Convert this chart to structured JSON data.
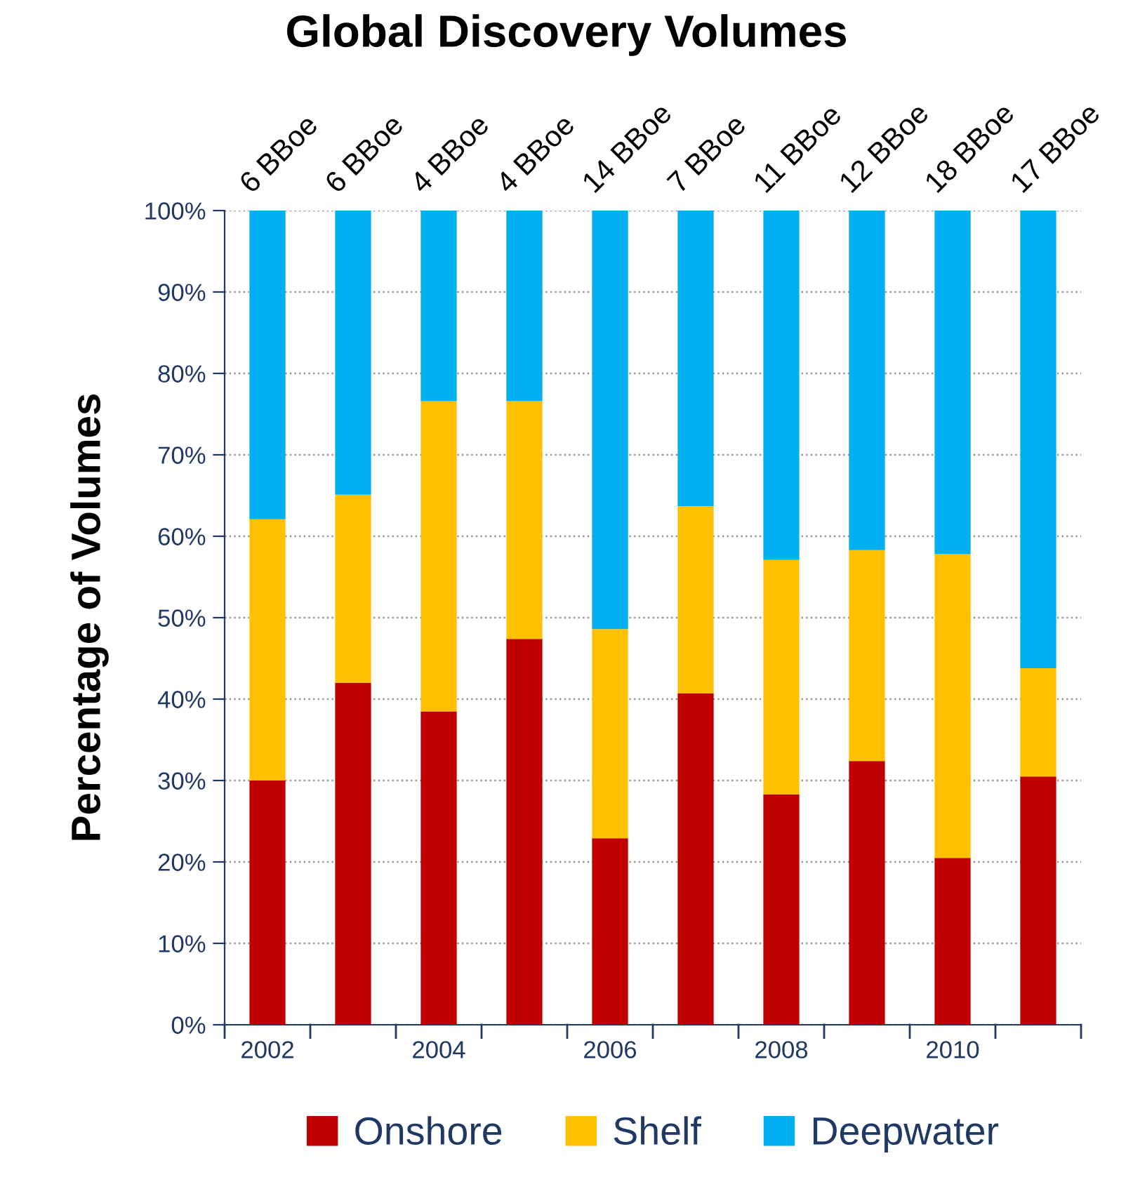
{
  "chart_data": {
    "type": "bar",
    "stacked": true,
    "title": "Global Discovery Volumes",
    "ylabel": "Percentage of Volumes",
    "categories": [
      "2002",
      null,
      "2004",
      null,
      "2006",
      null,
      "2008",
      null,
      "2010",
      null
    ],
    "series": [
      {
        "name": "Onshore",
        "color": "#c00000",
        "values": [
          30.0,
          42.0,
          38.5,
          47.4,
          22.9,
          40.7,
          28.3,
          32.4,
          20.5,
          30.5
        ]
      },
      {
        "name": "Shelf",
        "color": "#ffc000",
        "values": [
          32.1,
          23.1,
          38.1,
          29.2,
          25.7,
          23.0,
          28.8,
          25.9,
          37.3,
          13.3
        ]
      },
      {
        "name": "Deepwater",
        "color": "#00b0f0",
        "values": [
          37.9,
          34.9,
          23.4,
          23.4,
          51.4,
          36.3,
          42.9,
          41.7,
          42.2,
          56.2
        ]
      }
    ],
    "annotations": [
      "6 BBoe",
      "6 BBoe",
      "4 BBoe",
      "4 BBoe",
      "14 BBoe",
      "7 BBoe",
      "11 BBoe",
      "12 BBoe",
      "18 BBoe",
      "17 BBoe"
    ],
    "ylim": [
      0,
      100
    ],
    "yticks": [
      {
        "value": 0,
        "label": "0%"
      },
      {
        "value": 10,
        "label": "10%"
      },
      {
        "value": 20,
        "label": "20%"
      },
      {
        "value": 30,
        "label": "30%"
      },
      {
        "value": 40,
        "label": "40%"
      },
      {
        "value": 50,
        "label": "50%"
      },
      {
        "value": 60,
        "label": "60%"
      },
      {
        "value": 70,
        "label": "70%"
      },
      {
        "value": 80,
        "label": "80%"
      },
      {
        "value": 90,
        "label": "90%"
      },
      {
        "value": 100,
        "label": "100%"
      }
    ],
    "grid": "y",
    "legend": "bottom"
  }
}
